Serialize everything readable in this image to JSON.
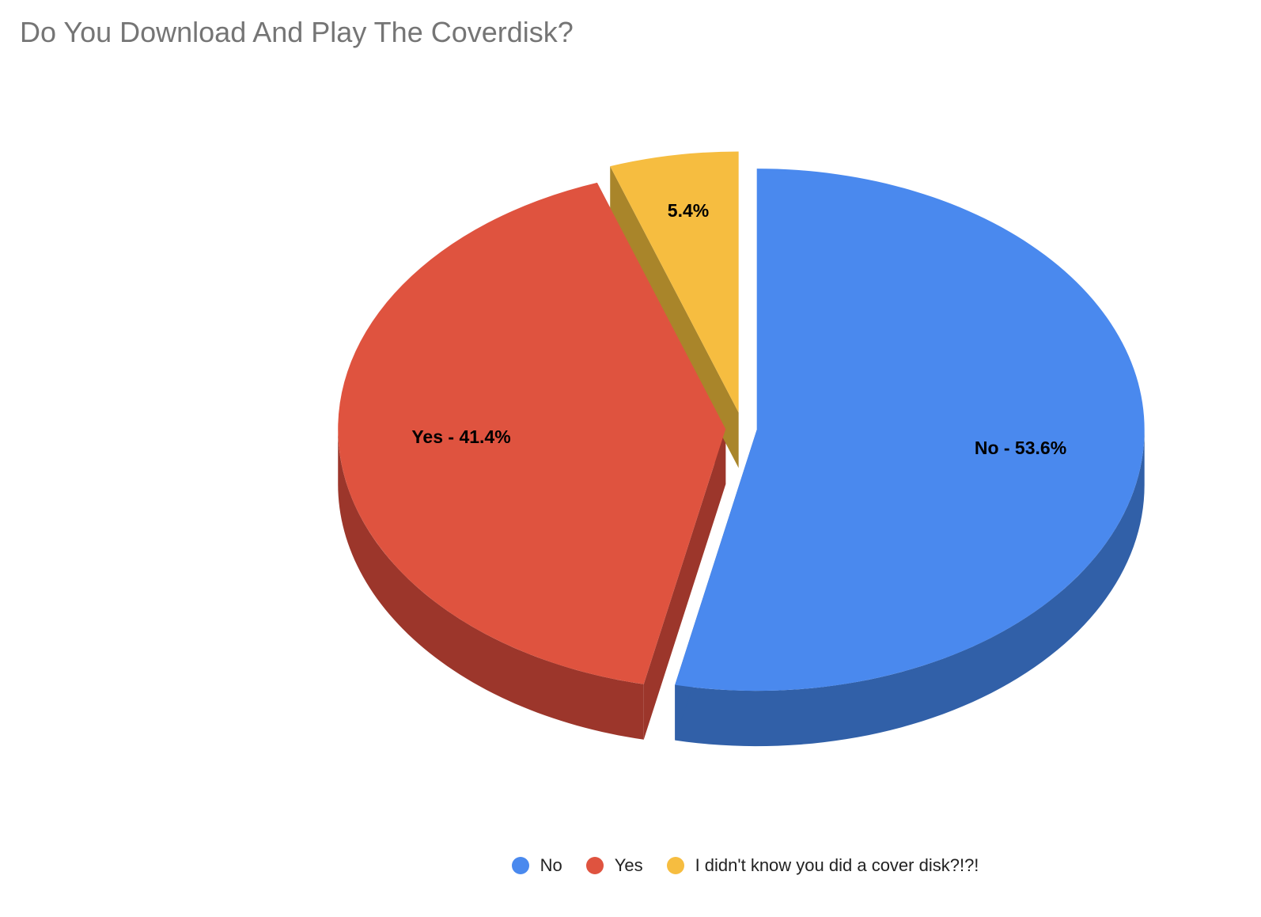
{
  "chart_data": {
    "type": "pie",
    "style": "3d-exploded",
    "title": "Do You Download And Play The Coverdisk?",
    "slices": [
      {
        "name": "No",
        "value": 53.6,
        "label": "No  -  53.6%",
        "color": "#4a89ee",
        "side_color": "#3160a8"
      },
      {
        "name": "Yes",
        "value": 41.4,
        "label": "Yes  -  41.4%",
        "color": "#df533f",
        "side_color": "#9c362b"
      },
      {
        "name": "I didn't know you did a cover disk?!?!",
        "value": 5.4,
        "label": "5.4%",
        "color": "#f6bd40",
        "side_color": "#a9852a"
      }
    ],
    "legend_position": "bottom"
  }
}
